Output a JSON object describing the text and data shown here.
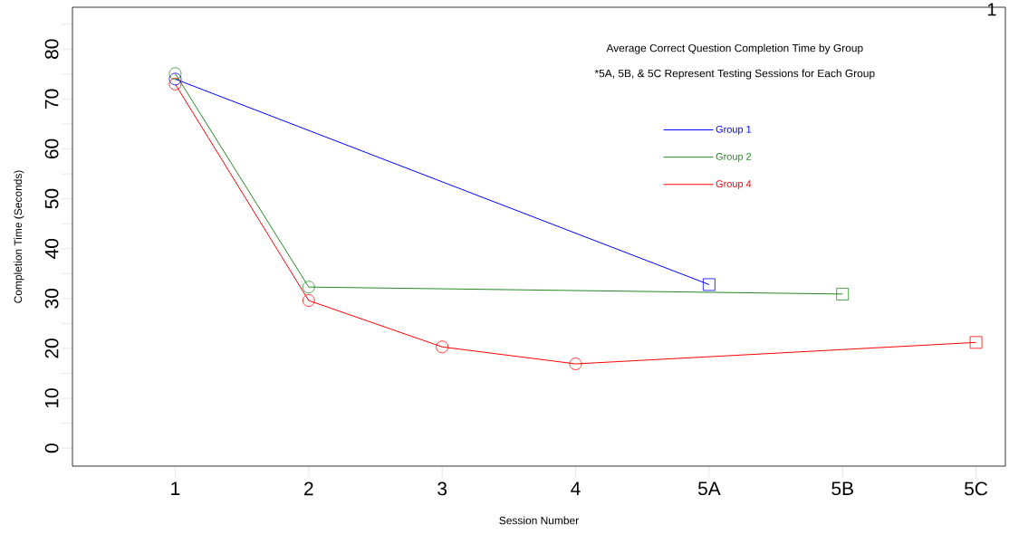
{
  "chart_data": {
    "type": "line",
    "title": "Average Correct Question Completion Time by Group",
    "subtitle": "*5A, 5B, & 5C Represent Testing Sessions for Each Group",
    "xlabel": "Session Number",
    "ylabel": "Completion Time (Seconds)",
    "annotations": [
      "1"
    ],
    "categories": [
      "1",
      "2",
      "3",
      "4",
      "5A",
      "5B",
      "5C"
    ],
    "series": [
      {
        "name": "Group 1",
        "color": "#0000ff",
        "marker": "none",
        "values": [
          74.0,
          null,
          null,
          null,
          32.8,
          null,
          null
        ]
      },
      {
        "name": "Group 2",
        "color": "#228b22",
        "marker": "none",
        "values": [
          75.1,
          32.3,
          null,
          null,
          null,
          30.9,
          null
        ]
      },
      {
        "name": "Group 4",
        "color": "#ff0000",
        "marker": "none",
        "values": [
          73.0,
          29.6,
          20.3,
          16.9,
          null,
          null,
          21.2
        ]
      },
      {
        "type": "scatter",
        "color": "#0000ff",
        "marker": "circle",
        "values": [
          74.0,
          null,
          null,
          null,
          null,
          null,
          null
        ]
      },
      {
        "type": "scatter",
        "color": "#0000ff",
        "marker": "square",
        "values": [
          null,
          null,
          null,
          null,
          32.8,
          null,
          null
        ]
      },
      {
        "type": "scatter",
        "color": "#228b22",
        "marker": "circle",
        "values": [
          75.1,
          32.3,
          null,
          null,
          null,
          null,
          null
        ]
      },
      {
        "type": "scatter",
        "color": "#228b22",
        "marker": "square",
        "values": [
          null,
          null,
          null,
          null,
          null,
          30.9,
          null
        ]
      },
      {
        "type": "scatter",
        "color": "#ff0000",
        "marker": "circle",
        "values": [
          73.0,
          29.6,
          20.3,
          16.9,
          null,
          null,
          null
        ]
      },
      {
        "type": "scatter",
        "color": "#ff0000",
        "marker": "square",
        "values": [
          null,
          null,
          null,
          null,
          null,
          null,
          21.2
        ]
      }
    ],
    "ylim": [
      -3.6,
      88.4
    ],
    "yticks": [
      0,
      {
        "value": 5,
        "label": null
      },
      10,
      {
        "value": 15,
        "label": null
      },
      20,
      {
        "value": 25,
        "label": null
      },
      30,
      {
        "value": 35,
        "label": null
      },
      40,
      {
        "value": 45,
        "label": null
      },
      50,
      {
        "value": 55,
        "label": null
      },
      60,
      {
        "value": 65,
        "label": null
      },
      70,
      {
        "value": 75,
        "label": null
      },
      80,
      {
        "value": 85,
        "label": null
      }
    ],
    "legend": "top right",
    "grid": false
  }
}
